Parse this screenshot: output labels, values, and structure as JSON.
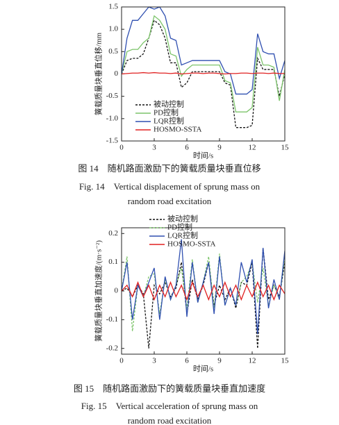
{
  "chart_data": [
    {
      "type": "line",
      "x_label": "时间/s",
      "y_label": "簧载质量块垂直位移/mm",
      "x": [
        0,
        0.5,
        1,
        1.5,
        2,
        2.5,
        3,
        3.5,
        4,
        4.5,
        5,
        5.5,
        6,
        6.5,
        7,
        7.5,
        8,
        8.5,
        9,
        9.5,
        10,
        10.5,
        11,
        11.5,
        12,
        12.5,
        13,
        13.5,
        14,
        14.5,
        15
      ],
      "xlim": [
        0,
        15
      ],
      "xticks": [
        0,
        3,
        6,
        9,
        12,
        15
      ],
      "ylim": [
        -1.5,
        1.5
      ],
      "yticks": [
        -1.5,
        {
          "value": -1.0,
          "label": "-1.0"
        },
        -0.5,
        0,
        0.5,
        {
          "value": 1.0,
          "label": "1.0"
        },
        1.5
      ],
      "legend": "lower left",
      "series": [
        {
          "name": "被动控制",
          "color": "#111111",
          "linestyle": "dashed",
          "values": [
            0,
            0.3,
            0.35,
            0.35,
            0.45,
            0.8,
            1.2,
            1.1,
            0.8,
            0.25,
            0.25,
            -0.3,
            -0.2,
            0.05,
            0.05,
            0.05,
            0.05,
            0.05,
            0.05,
            -0.2,
            -0.25,
            -1.2,
            -1.2,
            -1.2,
            -1.15,
            0.35,
            0.1,
            0.1,
            0.1,
            -0.5,
            0
          ]
        },
        {
          "name": "PD控制",
          "color": "#7cc46a",
          "linestyle": "solid",
          "values": [
            0,
            0.5,
            0.55,
            0.55,
            0.7,
            0.8,
            1.3,
            1.2,
            1.0,
            0.45,
            0.4,
            -0.05,
            0.1,
            0.2,
            0.2,
            0.2,
            0.2,
            0.2,
            0.2,
            -0.15,
            -0.2,
            -0.85,
            -0.85,
            -0.85,
            -0.75,
            0.6,
            0.2,
            0.2,
            0.15,
            -0.6,
            0.1
          ]
        },
        {
          "name": "LQR控制",
          "color": "#2f4fb0",
          "linestyle": "solid",
          "values": [
            0,
            0.8,
            1.2,
            1.2,
            1.35,
            1.5,
            1.45,
            1.5,
            1.3,
            0.8,
            0.75,
            0.2,
            0.25,
            0.3,
            0.3,
            0.3,
            0.3,
            0.3,
            0.3,
            0.05,
            0,
            -0.45,
            -0.45,
            -0.45,
            -0.35,
            0.9,
            0.5,
            0.45,
            0.45,
            -0.1,
            0.3
          ]
        },
        {
          "name": "HOSMO-SSTA",
          "color": "#e02020",
          "linestyle": "solid",
          "values": [
            0,
            0.01,
            0.02,
            0.02,
            0.03,
            0.02,
            0.03,
            0.02,
            0.02,
            0.01,
            0.02,
            0,
            0.01,
            0.02,
            0.02,
            0.01,
            0.02,
            0.02,
            0.01,
            0,
            0.01,
            0.01,
            0.02,
            0.02,
            0.01,
            0.02,
            0.02,
            0.01,
            0.02,
            0.01,
            0.01
          ]
        }
      ]
    },
    {
      "type": "line",
      "x_label": "时间/s",
      "y_label": "簧载质量块垂直加速度/(m·s⁻²)",
      "x": [
        0,
        0.5,
        1,
        1.5,
        2,
        2.5,
        3,
        3.5,
        4,
        4.5,
        5,
        5.5,
        6,
        6.5,
        7,
        7.5,
        8,
        8.5,
        9,
        9.5,
        10,
        10.5,
        11,
        11.5,
        12,
        12.5,
        13,
        13.5,
        14,
        14.5,
        15
      ],
      "xlim": [
        0,
        15
      ],
      "xticks": [
        0,
        3,
        6,
        9,
        12,
        15
      ],
      "ylim": [
        -0.22,
        0.22
      ],
      "yticks": [
        -0.2,
        -0.1,
        0,
        0.1,
        0.2
      ],
      "legend": "upper center",
      "series": [
        {
          "name": "被动控制",
          "color": "#111111",
          "linestyle": "dashed",
          "values": [
            0,
            0.01,
            -0.02,
            0.02,
            -0.01,
            -0.2,
            0.02,
            -0.01,
            0.03,
            -0.02,
            0.01,
            0.1,
            -0.08,
            0.04,
            -0.03,
            0.02,
            0.1,
            -0.05,
            0.02,
            -0.03,
            0.01,
            -0.06,
            0.03,
            0.02,
            0.1,
            -0.2,
            0.15,
            -0.03,
            0.02,
            -0.02,
            0.1
          ]
        },
        {
          "name": "PD控制",
          "color": "#7cc46a",
          "linestyle": "dashed",
          "values": [
            0,
            0.12,
            -0.14,
            0.02,
            -0.02,
            0.05,
            0.06,
            -0.08,
            0.04,
            -0.03,
            0.02,
            0.08,
            -0.06,
            0.11,
            -0.04,
            0.03,
            0.12,
            -0.06,
            0.13,
            -0.05,
            0.01,
            -0.05,
            0.03,
            0.05,
            0.1,
            -0.04,
            0.08,
            -0.05,
            0.02,
            -0.03,
            0.12
          ]
        },
        {
          "name": "LQR控制",
          "color": "#2f4fb0",
          "linestyle": "solid",
          "values": [
            0,
            0.1,
            -0.1,
            0.02,
            -0.02,
            0.03,
            0.08,
            -0.1,
            0.05,
            -0.03,
            0.02,
            0.18,
            -0.09,
            0.1,
            -0.04,
            0.03,
            0.1,
            -0.08,
            0.12,
            -0.05,
            0.01,
            -0.05,
            0.1,
            0.03,
            0.11,
            -0.15,
            0.15,
            -0.06,
            0.04,
            -0.03,
            0.14
          ]
        },
        {
          "name": "HOSMO-SSTA",
          "color": "#e02020",
          "linestyle": "solid",
          "values": [
            0,
            0.02,
            -0.02,
            0.03,
            -0.02,
            0.02,
            -0.03,
            0.02,
            -0.02,
            0.03,
            -0.02,
            0.02,
            -0.03,
            0.03,
            -0.02,
            0.02,
            -0.03,
            0.02,
            -0.02,
            0.03,
            -0.02,
            0.02,
            -0.03,
            0.02,
            -0.02,
            0.03,
            -0.02,
            0.02,
            -0.03,
            0.02,
            -0.01
          ]
        }
      ]
    }
  ],
  "captions": [
    {
      "cn": "图 14　随机路面激励下的簧载质量块垂直位移",
      "en": [
        "Fig. 14　Vertical displacement of sprung mass on",
        "random road excitation"
      ]
    },
    {
      "cn": "图 15　随机路面激励下的簧载质量块垂直加速度",
      "en": [
        "Fig. 15　Vertical acceleration of sprung mass on",
        "random road excitation"
      ]
    }
  ]
}
